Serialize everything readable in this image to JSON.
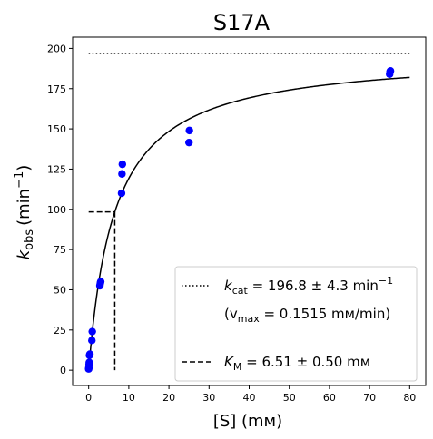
{
  "chart_data": {
    "type": "scatter",
    "title": "S17A",
    "xlabel": "[S] (mм)",
    "ylabel_main": "k",
    "ylabel_sub": "obs",
    "ylabel_unit": "(min",
    "ylabel_sup": "−1",
    "ylabel_close": ")",
    "xlim": [
      -4,
      84
    ],
    "ylim": [
      -9.5,
      207
    ],
    "x_ticks": [
      0,
      10,
      20,
      30,
      40,
      50,
      60,
      70,
      80
    ],
    "y_ticks": [
      0,
      25,
      50,
      75,
      100,
      125,
      150,
      175,
      200
    ],
    "grid": false,
    "legend_position": "lower-right",
    "points_color": "#0000ff",
    "line_color": "#000000",
    "points": [
      {
        "x": 0.0,
        "y": 0.8
      },
      {
        "x": 0.05,
        "y": 1.5
      },
      {
        "x": 0.1,
        "y": 3.5
      },
      {
        "x": 0.15,
        "y": 4.8
      },
      {
        "x": 0.2,
        "y": 9.2
      },
      {
        "x": 0.3,
        "y": 10.0
      },
      {
        "x": 0.8,
        "y": 18.5
      },
      {
        "x": 0.9,
        "y": 24.0
      },
      {
        "x": 2.8,
        "y": 52.5
      },
      {
        "x": 2.9,
        "y": 54.0
      },
      {
        "x": 3.0,
        "y": 55.0
      },
      {
        "x": 8.2,
        "y": 110.0
      },
      {
        "x": 8.3,
        "y": 122.0
      },
      {
        "x": 8.4,
        "y": 128.0
      },
      {
        "x": 25.0,
        "y": 141.5
      },
      {
        "x": 25.1,
        "y": 149.0
      },
      {
        "x": 75.0,
        "y": 184.0
      },
      {
        "x": 75.1,
        "y": 185.5
      },
      {
        "x": 75.2,
        "y": 186.0
      }
    ],
    "fit": {
      "kcat": 196.8,
      "KM": 6.51,
      "x_range": [
        0,
        80
      ]
    },
    "kcat_line": {
      "y": 196.8,
      "x_range": [
        0,
        80
      ]
    },
    "km_lines": {
      "x": 6.51,
      "y": 98.4,
      "x_start": 0
    },
    "legend": {
      "kcat_label_main": "k",
      "kcat_label_sub": "cat",
      "kcat_value": " = 196.8 ± 4.3 min",
      "kcat_sup": "−1",
      "vmax_open": "(v",
      "vmax_sub": "max",
      "vmax_value": " = 0.1515 mм/min)",
      "km_label_main": "K",
      "km_label_sub": "M",
      "km_value": " = 6.51 ± 0.50 mм"
    }
  }
}
